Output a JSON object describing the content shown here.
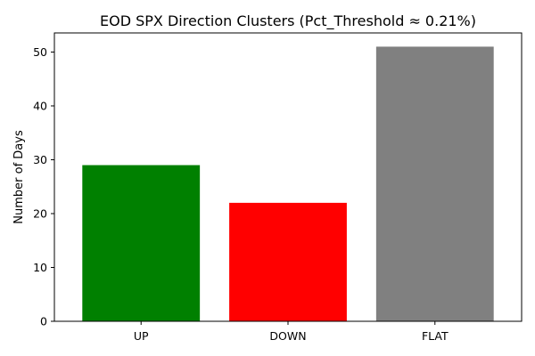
{
  "chart_data": {
    "type": "bar",
    "title": "EOD SPX Direction Clusters (Pct_Threshold ≈ 0.21%)",
    "xlabel": "",
    "ylabel": "Number of Days",
    "categories": [
      "UP",
      "DOWN",
      "FLAT"
    ],
    "values": [
      29,
      22,
      51
    ],
    "colors": [
      "#008000",
      "#ff0000",
      "#808080"
    ],
    "ylim": [
      0,
      53.55
    ],
    "yticks": [
      0,
      10,
      20,
      30,
      40,
      50
    ],
    "grid": false,
    "legend": "none"
  }
}
